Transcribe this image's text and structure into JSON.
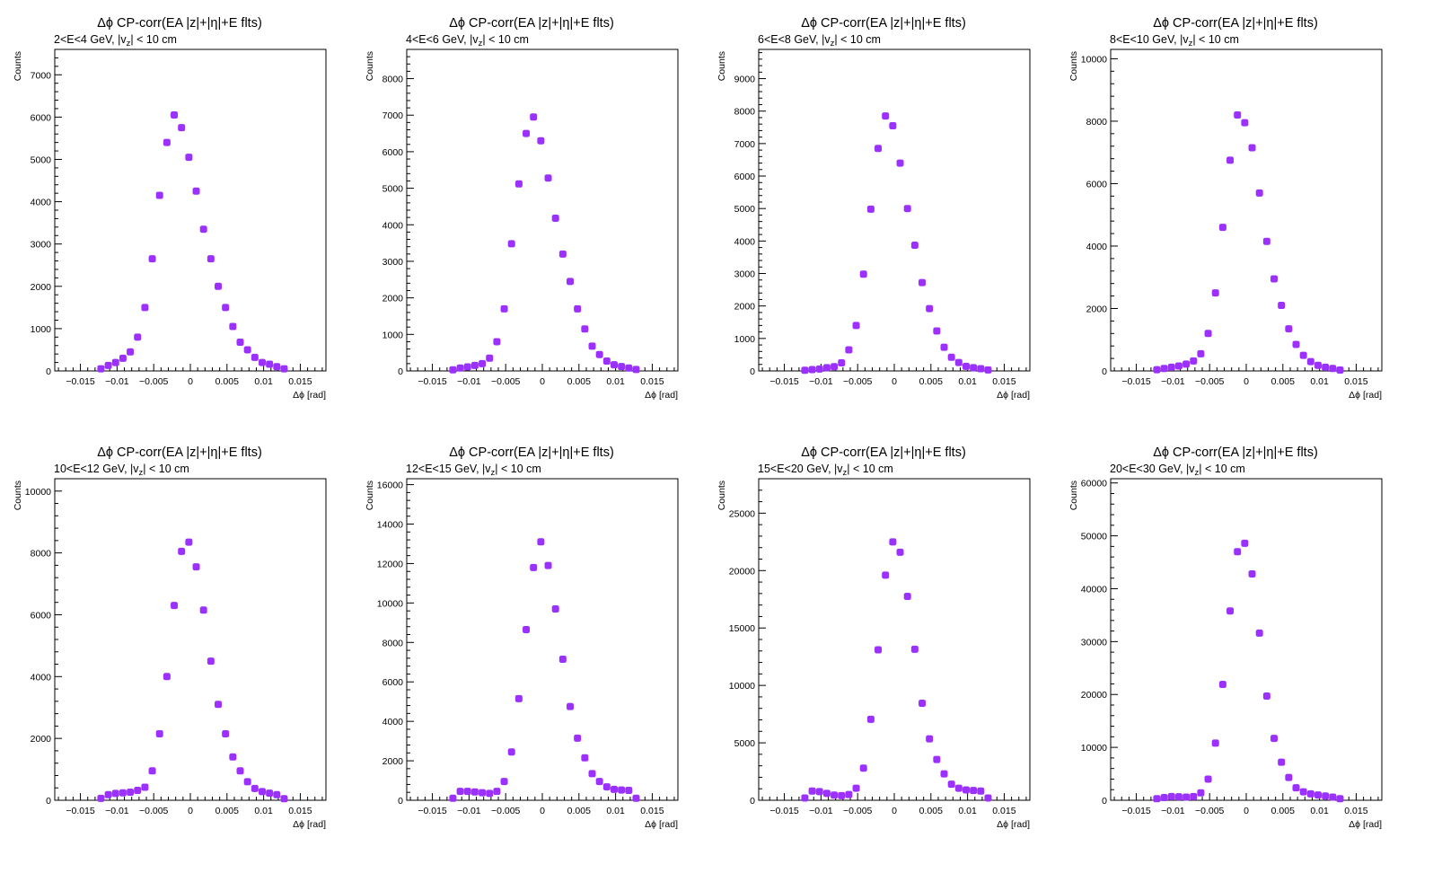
{
  "colors": {
    "marker": "#9B30FF",
    "axis": "#000000",
    "background": "#ffffff"
  },
  "chart_data": [
    {
      "type": "scatter",
      "title": "Δϕ CP-corr(EA |z|+|η|+E flts)",
      "subtitle": "2<E<4 GeV, |v_z| < 10 cm",
      "xlabel": "Δϕ  [rad]",
      "ylabel": "Counts",
      "xlim": [
        -0.0185,
        0.0185
      ],
      "ylim": [
        0,
        7600
      ],
      "xticks": [
        "-0.015",
        "-0.01",
        "-0.005",
        "0",
        "0.005",
        "0.01",
        "0.015"
      ],
      "yticks": [
        "0",
        "1000",
        "2000",
        "3000",
        "4000",
        "5000",
        "6000",
        "7000"
      ],
      "ytick_values": [
        0,
        1000,
        2000,
        3000,
        4000,
        5000,
        6000,
        7000
      ],
      "grid": false,
      "x": [
        -0.0122,
        -0.0112,
        -0.0102,
        -0.0092,
        -0.0082,
        -0.0072,
        -0.0062,
        -0.0052,
        -0.0042,
        -0.0032,
        -0.0022,
        -0.0012,
        -0.0002,
        0.0008,
        0.0018,
        0.0028,
        0.0038,
        0.0048,
        0.0058,
        0.0068,
        0.0078,
        0.0088,
        0.0098,
        0.0108,
        0.0118,
        0.0128
      ],
      "y": [
        50,
        130,
        200,
        300,
        450,
        800,
        1500,
        2650,
        4150,
        5400,
        6050,
        5750,
        5050,
        4250,
        3350,
        2650,
        2000,
        1500,
        1050,
        680,
        500,
        320,
        200,
        160,
        100,
        50
      ]
    },
    {
      "type": "scatter",
      "title": "Δϕ CP-corr(EA |z|+|η|+E flts)",
      "subtitle": "4<E<6 GeV, |v_z| < 10 cm",
      "xlabel": "Δϕ  [rad]",
      "ylabel": "Counts",
      "xlim": [
        -0.0185,
        0.0185
      ],
      "ylim": [
        0,
        8800
      ],
      "xticks": [
        "-0.015",
        "-0.01",
        "-0.005",
        "0",
        "0.005",
        "0.01",
        "0.015"
      ],
      "yticks": [
        "0",
        "1000",
        "2000",
        "3000",
        "4000",
        "5000",
        "6000",
        "7000",
        "8000"
      ],
      "ytick_values": [
        0,
        1000,
        2000,
        3000,
        4000,
        5000,
        6000,
        7000,
        8000
      ],
      "grid": false,
      "x": [
        -0.0122,
        -0.0112,
        -0.0102,
        -0.0092,
        -0.0082,
        -0.0072,
        -0.0062,
        -0.0052,
        -0.0042,
        -0.0032,
        -0.0022,
        -0.0012,
        -0.0002,
        0.0008,
        0.0018,
        0.0028,
        0.0038,
        0.0048,
        0.0058,
        0.0068,
        0.0078,
        0.0088,
        0.0098,
        0.0108,
        0.0118,
        0.0128
      ],
      "y": [
        30,
        80,
        110,
        150,
        200,
        350,
        800,
        1700,
        3480,
        5120,
        6500,
        6950,
        6300,
        5280,
        4180,
        3200,
        2450,
        1700,
        1150,
        680,
        450,
        270,
        170,
        120,
        80,
        40
      ]
    },
    {
      "type": "scatter",
      "title": "Δϕ CP-corr(EA |z|+|η|+E flts)",
      "subtitle": "6<E<8 GeV, |v_z| < 10 cm",
      "xlabel": "Δϕ  [rad]",
      "ylabel": "Counts",
      "xlim": [
        -0.0185,
        0.0185
      ],
      "ylim": [
        0,
        9900
      ],
      "xticks": [
        "-0.015",
        "-0.01",
        "-0.005",
        "0",
        "0.005",
        "0.01",
        "0.015"
      ],
      "yticks": [
        "0",
        "1000",
        "2000",
        "3000",
        "4000",
        "5000",
        "6000",
        "7000",
        "8000",
        "9000"
      ],
      "ytick_values": [
        0,
        1000,
        2000,
        3000,
        4000,
        5000,
        6000,
        7000,
        8000,
        9000
      ],
      "grid": false,
      "x": [
        -0.0122,
        -0.0112,
        -0.0102,
        -0.0092,
        -0.0082,
        -0.0072,
        -0.0062,
        -0.0052,
        -0.0042,
        -0.0032,
        -0.0022,
        -0.0012,
        -0.0002,
        0.0008,
        0.0018,
        0.0028,
        0.0038,
        0.0048,
        0.0058,
        0.0068,
        0.0078,
        0.0088,
        0.0098,
        0.0108,
        0.0118,
        0.0128
      ],
      "y": [
        20,
        40,
        60,
        100,
        130,
        250,
        650,
        1400,
        2980,
        4980,
        6850,
        7850,
        7550,
        6400,
        5000,
        3870,
        2720,
        1920,
        1230,
        730,
        420,
        260,
        140,
        100,
        70,
        30
      ]
    },
    {
      "type": "scatter",
      "title": "Δϕ CP-corr(EA |z|+|η|+E flts)",
      "subtitle": "8<E<10 GeV, |v_z| < 10 cm",
      "xlabel": "Δϕ  [rad]",
      "ylabel": "Counts",
      "xlim": [
        -0.0185,
        0.0185
      ],
      "ylim": [
        0,
        10300
      ],
      "xticks": [
        "-0.015",
        "-0.01",
        "-0.005",
        "0",
        "0.005",
        "0.01",
        "0.015"
      ],
      "yticks": [
        "0",
        "2000",
        "4000",
        "6000",
        "8000",
        "10000"
      ],
      "ytick_values": [
        0,
        2000,
        4000,
        6000,
        8000,
        10000
      ],
      "grid": false,
      "x": [
        -0.0122,
        -0.0112,
        -0.0102,
        -0.0092,
        -0.0082,
        -0.0072,
        -0.0062,
        -0.0052,
        -0.0042,
        -0.0032,
        -0.0022,
        -0.0012,
        -0.0002,
        0.0008,
        0.0018,
        0.0028,
        0.0038,
        0.0048,
        0.0058,
        0.0068,
        0.0078,
        0.0088,
        0.0098,
        0.0108,
        0.0118,
        0.0128
      ],
      "y": [
        40,
        80,
        120,
        160,
        220,
        320,
        550,
        1200,
        2500,
        4600,
        6750,
        8200,
        7950,
        7150,
        5700,
        4150,
        2950,
        2100,
        1350,
        850,
        500,
        300,
        180,
        120,
        80,
        30
      ]
    },
    {
      "type": "scatter",
      "title": "Δϕ CP-corr(EA |z|+|η|+E flts)",
      "subtitle": "10<E<12 GeV, |v_z| < 10 cm",
      "xlabel": "Δϕ  [rad]",
      "ylabel": "Counts",
      "xlim": [
        -0.0185,
        0.0185
      ],
      "ylim": [
        0,
        10400
      ],
      "xticks": [
        "-0.015",
        "-0.01",
        "-0.005",
        "0",
        "0.005",
        "0.01",
        "0.015"
      ],
      "yticks": [
        "0",
        "2000",
        "4000",
        "6000",
        "8000",
        "10000"
      ],
      "ytick_values": [
        0,
        2000,
        4000,
        6000,
        8000,
        10000
      ],
      "grid": false,
      "x": [
        -0.0122,
        -0.0112,
        -0.0102,
        -0.0092,
        -0.0082,
        -0.0072,
        -0.0062,
        -0.0052,
        -0.0042,
        -0.0032,
        -0.0022,
        -0.0012,
        -0.0002,
        0.0008,
        0.0018,
        0.0028,
        0.0038,
        0.0048,
        0.0058,
        0.0068,
        0.0078,
        0.0088,
        0.0098,
        0.0108,
        0.0118,
        0.0128
      ],
      "y": [
        60,
        180,
        220,
        240,
        260,
        320,
        420,
        950,
        2150,
        4000,
        6300,
        8050,
        8350,
        7550,
        6150,
        4500,
        3100,
        2150,
        1400,
        950,
        600,
        380,
        280,
        230,
        180,
        50
      ]
    },
    {
      "type": "scatter",
      "title": "Δϕ CP-corr(EA |z|+|η|+E flts)",
      "subtitle": "12<E<15 GeV, |v_z| < 10 cm",
      "xlabel": "Δϕ  [rad]",
      "ylabel": "Counts",
      "xlim": [
        -0.0185,
        0.0185
      ],
      "ylim": [
        0,
        16300
      ],
      "xticks": [
        "-0.015",
        "-0.01",
        "-0.005",
        "0",
        "0.005",
        "0.01",
        "0.015"
      ],
      "yticks": [
        "0",
        "2000",
        "4000",
        "6000",
        "8000",
        "10000",
        "12000",
        "14000",
        "16000"
      ],
      "ytick_values": [
        0,
        2000,
        4000,
        6000,
        8000,
        10000,
        12000,
        14000,
        16000
      ],
      "grid": false,
      "x": [
        -0.0122,
        -0.0112,
        -0.0102,
        -0.0092,
        -0.0082,
        -0.0072,
        -0.0062,
        -0.0052,
        -0.0042,
        -0.0032,
        -0.0022,
        -0.0012,
        -0.0002,
        0.0008,
        0.0018,
        0.0028,
        0.0038,
        0.0048,
        0.0058,
        0.0068,
        0.0078,
        0.0088,
        0.0098,
        0.0108,
        0.0118,
        0.0128
      ],
      "y": [
        100,
        450,
        450,
        420,
        380,
        350,
        450,
        950,
        2450,
        5150,
        8650,
        11800,
        13100,
        11900,
        9700,
        7150,
        4750,
        3150,
        2150,
        1350,
        950,
        680,
        550,
        520,
        500,
        100
      ]
    },
    {
      "type": "scatter",
      "title": "Δϕ CP-corr(EA |z|+|η|+E flts)",
      "subtitle": "15<E<20 GeV, |v_z| < 10 cm",
      "xlabel": "Δϕ  [rad]",
      "ylabel": "Counts",
      "xlim": [
        -0.0185,
        0.0185
      ],
      "ylim": [
        0,
        28000
      ],
      "xticks": [
        "-0.015",
        "-0.01",
        "-0.005",
        "0",
        "0.005",
        "0.01",
        "0.015"
      ],
      "yticks": [
        "0",
        "5000",
        "10000",
        "15000",
        "20000",
        "25000"
      ],
      "ytick_values": [
        0,
        5000,
        10000,
        15000,
        20000,
        25000
      ],
      "grid": false,
      "x": [
        -0.0122,
        -0.0112,
        -0.0102,
        -0.0092,
        -0.0082,
        -0.0072,
        -0.0062,
        -0.0052,
        -0.0042,
        -0.0032,
        -0.0022,
        -0.0012,
        -0.0002,
        0.0008,
        0.0018,
        0.0028,
        0.0038,
        0.0048,
        0.0058,
        0.0068,
        0.0078,
        0.0088,
        0.0098,
        0.0108,
        0.0118,
        0.0128
      ],
      "y": [
        200,
        800,
        750,
        600,
        450,
        400,
        500,
        1050,
        2800,
        7050,
        13100,
        19600,
        22500,
        21600,
        17750,
        13150,
        8450,
        5350,
        3550,
        2300,
        1400,
        1050,
        900,
        850,
        800,
        200
      ]
    },
    {
      "type": "scatter",
      "title": "Δϕ CP-corr(EA |z|+|η|+E flts)",
      "subtitle": "20<E<30 GeV, |v_z| < 10 cm",
      "xlabel": "Δϕ  [rad]",
      "ylabel": "Counts",
      "xlim": [
        -0.0185,
        0.0185
      ],
      "ylim": [
        0,
        60800
      ],
      "xticks": [
        "-0.015",
        "-0.01",
        "-0.005",
        "0",
        "0.005",
        "0.01",
        "0.015"
      ],
      "yticks": [
        "0",
        "10000",
        "20000",
        "30000",
        "40000",
        "50000",
        "60000"
      ],
      "ytick_values": [
        0,
        10000,
        20000,
        30000,
        40000,
        50000,
        60000
      ],
      "grid": false,
      "x": [
        -0.0122,
        -0.0112,
        -0.0102,
        -0.0092,
        -0.0082,
        -0.0072,
        -0.0062,
        -0.0052,
        -0.0042,
        -0.0032,
        -0.0022,
        -0.0012,
        -0.0002,
        0.0008,
        0.0018,
        0.0028,
        0.0038,
        0.0048,
        0.0058,
        0.0068,
        0.0078,
        0.0088,
        0.0098,
        0.0108,
        0.0118,
        0.0128
      ],
      "y": [
        300,
        500,
        700,
        650,
        600,
        700,
        1400,
        4000,
        10800,
        21900,
        35800,
        47000,
        48600,
        42800,
        31600,
        19700,
        11700,
        7200,
        4300,
        2350,
        1600,
        1200,
        1000,
        800,
        600,
        300
      ]
    }
  ]
}
